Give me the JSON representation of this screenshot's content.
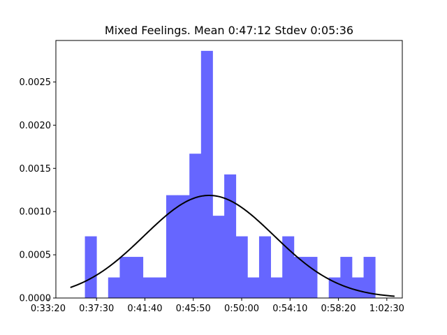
{
  "chart_data": {
    "type": "bar",
    "subtype": "histogram-with-normal-curve",
    "title": "Mixed Feelings. Mean 0:47:12 Stdev 0:05:36",
    "xlabel": "",
    "ylabel": "",
    "x_unit": "seconds",
    "xlim": [
      2040,
      3830
    ],
    "ylim": [
      0,
      0.00298
    ],
    "grid": false,
    "legend": "none",
    "bar_color": "#6666ff",
    "curve_color": "#000000",
    "bin_width": 60,
    "bin_starts": [
      2190,
      2250,
      2310,
      2370,
      2430,
      2490,
      2550,
      2610,
      2670,
      2730,
      2790,
      2850,
      2910,
      2970,
      3030,
      3090,
      3150,
      3210,
      3270,
      3330,
      3390,
      3450,
      3510,
      3570,
      3630,
      3690
    ],
    "values": [
      0.000714,
      0.0,
      0.000238,
      0.000476,
      0.000476,
      0.000238,
      0.000238,
      0.00119,
      0.00119,
      0.00167,
      0.00286,
      0.000952,
      0.00143,
      0.000714,
      0.000238,
      0.000714,
      0.000238,
      0.000714,
      0.000476,
      0.000476,
      0.0,
      0.000238,
      0.000476,
      0.000238,
      0.000476,
      0.0
    ],
    "normal_curve": {
      "mean": 2832,
      "stdev": 336,
      "x_start": 2115,
      "x_end": 3790
    },
    "x_ticks": [
      {
        "value": 2000,
        "label": "0:33:20"
      },
      {
        "value": 2250,
        "label": "0:37:30"
      },
      {
        "value": 2500,
        "label": "0:41:40"
      },
      {
        "value": 2750,
        "label": "0:45:50"
      },
      {
        "value": 3000,
        "label": "0:50:00"
      },
      {
        "value": 3250,
        "label": "0:54:10"
      },
      {
        "value": 3500,
        "label": "0:58:20"
      },
      {
        "value": 3750,
        "label": "1:02:30"
      }
    ],
    "y_ticks": [
      {
        "value": 0.0,
        "label": "0.0000"
      },
      {
        "value": 0.0005,
        "label": "0.0005"
      },
      {
        "value": 0.001,
        "label": "0.0010"
      },
      {
        "value": 0.0015,
        "label": "0.0015"
      },
      {
        "value": 0.002,
        "label": "0.0020"
      },
      {
        "value": 0.0025,
        "label": "0.0025"
      }
    ]
  }
}
